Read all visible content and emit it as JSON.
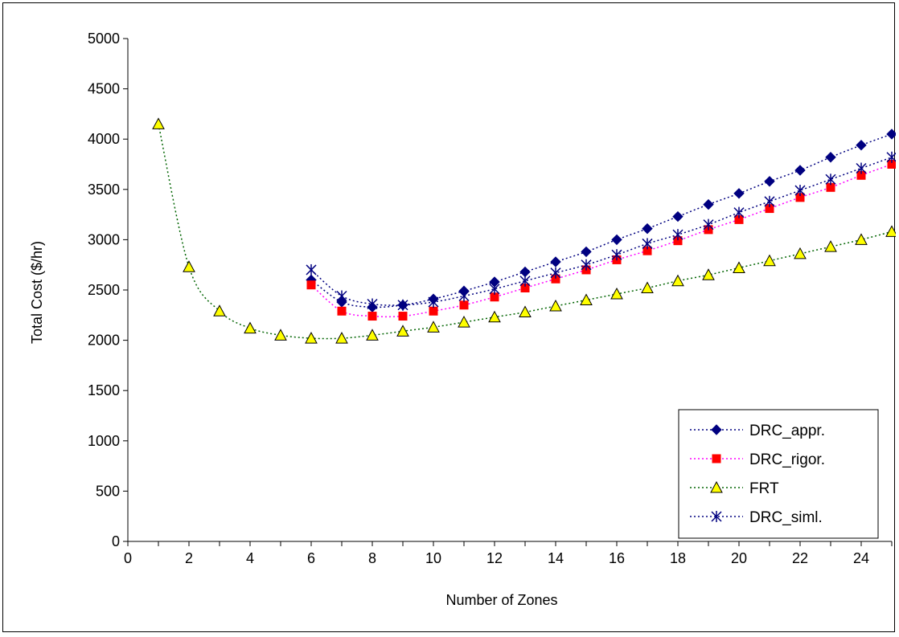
{
  "chart_data": {
    "type": "line",
    "title": "",
    "xlabel": "Number of Zones",
    "ylabel": "Total Cost ($/hr)",
    "xlim": [
      0,
      25
    ],
    "ylim": [
      0,
      5000
    ],
    "x_ticks": [
      "0",
      "2",
      "4",
      "6",
      "8",
      "10",
      "12",
      "14",
      "16",
      "18",
      "20",
      "22",
      "24"
    ],
    "y_ticks": [
      "0",
      "500",
      "1000",
      "1500",
      "2000",
      "2500",
      "3000",
      "3500",
      "4000",
      "4500",
      "5000"
    ],
    "grid": false,
    "legend_position": "bottom-right",
    "series": [
      {
        "name": "DRC_appr.",
        "color": "#000080",
        "line_color": "#000080",
        "marker": "diamond",
        "x": [
          6,
          7,
          8,
          9,
          10,
          11,
          12,
          13,
          14,
          15,
          16,
          17,
          18,
          19,
          20,
          21,
          22,
          23,
          24,
          25
        ],
        "values": [
          2600,
          2380,
          2330,
          2350,
          2410,
          2490,
          2580,
          2680,
          2780,
          2880,
          3000,
          3110,
          3230,
          3350,
          3460,
          3580,
          3690,
          3820,
          3940,
          4050
        ]
      },
      {
        "name": "DRC_rigor.",
        "color": "#ff0000",
        "line_color": "#ff00ff",
        "marker": "square",
        "x": [
          6,
          7,
          8,
          9,
          10,
          11,
          12,
          13,
          14,
          15,
          16,
          17,
          18,
          19,
          20,
          21,
          22,
          23,
          24,
          25
        ],
        "values": [
          2550,
          2290,
          2240,
          2240,
          2290,
          2350,
          2430,
          2520,
          2610,
          2700,
          2800,
          2890,
          2990,
          3100,
          3200,
          3310,
          3420,
          3520,
          3640,
          3750
        ]
      },
      {
        "name": "FRT",
        "color": "#ffff00",
        "line_color": "#006400",
        "marker": "triangle",
        "x": [
          1,
          2,
          3,
          4,
          5,
          6,
          7,
          8,
          9,
          10,
          11,
          12,
          13,
          14,
          15,
          16,
          17,
          18,
          19,
          20,
          21,
          22,
          23,
          24,
          25
        ],
        "values": [
          4150,
          2730,
          2290,
          2120,
          2050,
          2020,
          2020,
          2050,
          2090,
          2130,
          2180,
          2230,
          2280,
          2340,
          2400,
          2460,
          2520,
          2590,
          2650,
          2720,
          2790,
          2860,
          2930,
          3000,
          3080
        ]
      },
      {
        "name": "DRC_siml.",
        "color": "#000080",
        "line_color": "#000080",
        "marker": "star",
        "x": [
          6,
          7,
          8,
          9,
          10,
          11,
          12,
          13,
          14,
          15,
          16,
          17,
          18,
          19,
          20,
          21,
          22,
          23,
          24,
          25
        ],
        "values": [
          2700,
          2440,
          2360,
          2350,
          2380,
          2440,
          2510,
          2590,
          2670,
          2750,
          2850,
          2960,
          3050,
          3150,
          3270,
          3380,
          3490,
          3600,
          3710,
          3820
        ]
      }
    ]
  }
}
